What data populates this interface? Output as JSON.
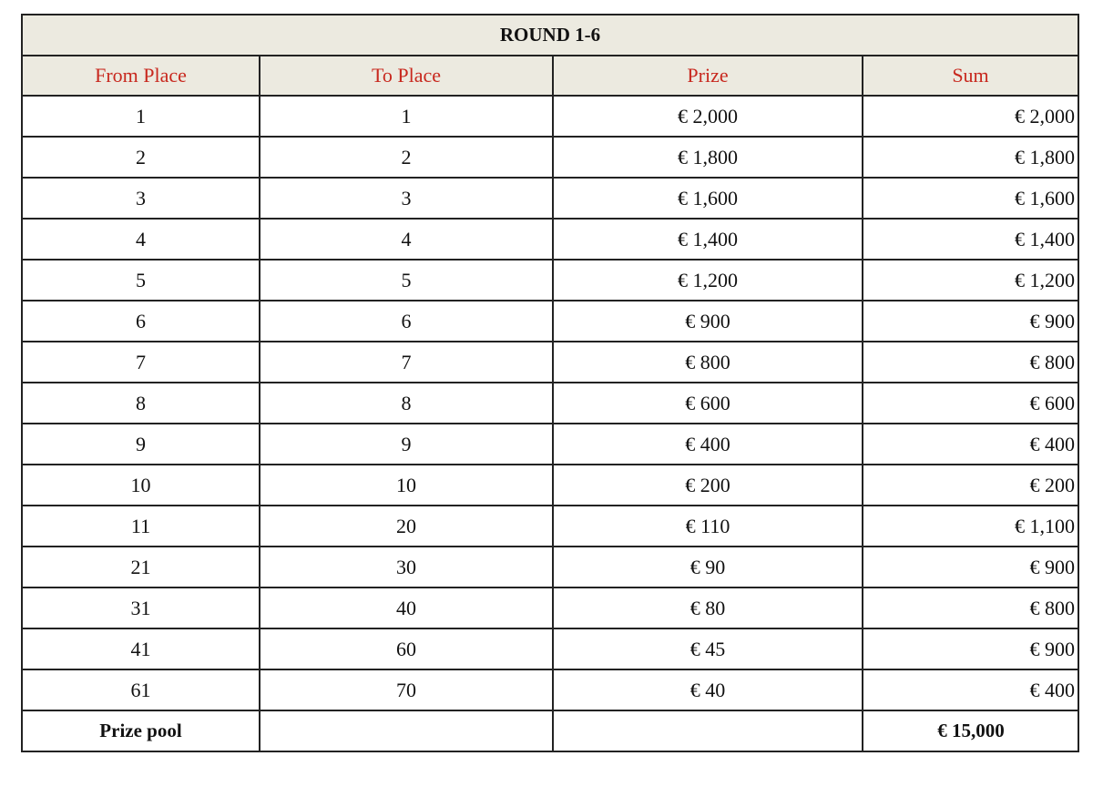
{
  "title": "ROUND 1-6",
  "headers": [
    "From Place",
    "To Place",
    "Prize",
    "Sum"
  ],
  "rows": [
    [
      "1",
      "1",
      "€ 2,000",
      "€ 2,000"
    ],
    [
      "2",
      "2",
      "€ 1,800",
      "€ 1,800"
    ],
    [
      "3",
      "3",
      "€ 1,600",
      "€ 1,600"
    ],
    [
      "4",
      "4",
      "€ 1,400",
      "€ 1,400"
    ],
    [
      "5",
      "5",
      "€ 1,200",
      "€ 1,200"
    ],
    [
      "6",
      "6",
      "€ 900",
      "€ 900"
    ],
    [
      "7",
      "7",
      "€ 800",
      "€ 800"
    ],
    [
      "8",
      "8",
      "€ 600",
      "€ 600"
    ],
    [
      "9",
      "9",
      "€ 400",
      "€ 400"
    ],
    [
      "10",
      "10",
      "€ 200",
      "€ 200"
    ],
    [
      "11",
      "20",
      "€ 110",
      "€ 1,100"
    ],
    [
      "21",
      "30",
      "€ 90",
      "€ 900"
    ],
    [
      "31",
      "40",
      "€ 80",
      "€ 800"
    ],
    [
      "41",
      "60",
      "€ 45",
      "€ 900"
    ],
    [
      "61",
      "70",
      "€ 40",
      "€ 400"
    ]
  ],
  "total": {
    "label": "Prize pool",
    "sum": "€ 15,000"
  },
  "colors": {
    "header_bg": "#ECEAE0",
    "header_text": "#C8281E"
  }
}
